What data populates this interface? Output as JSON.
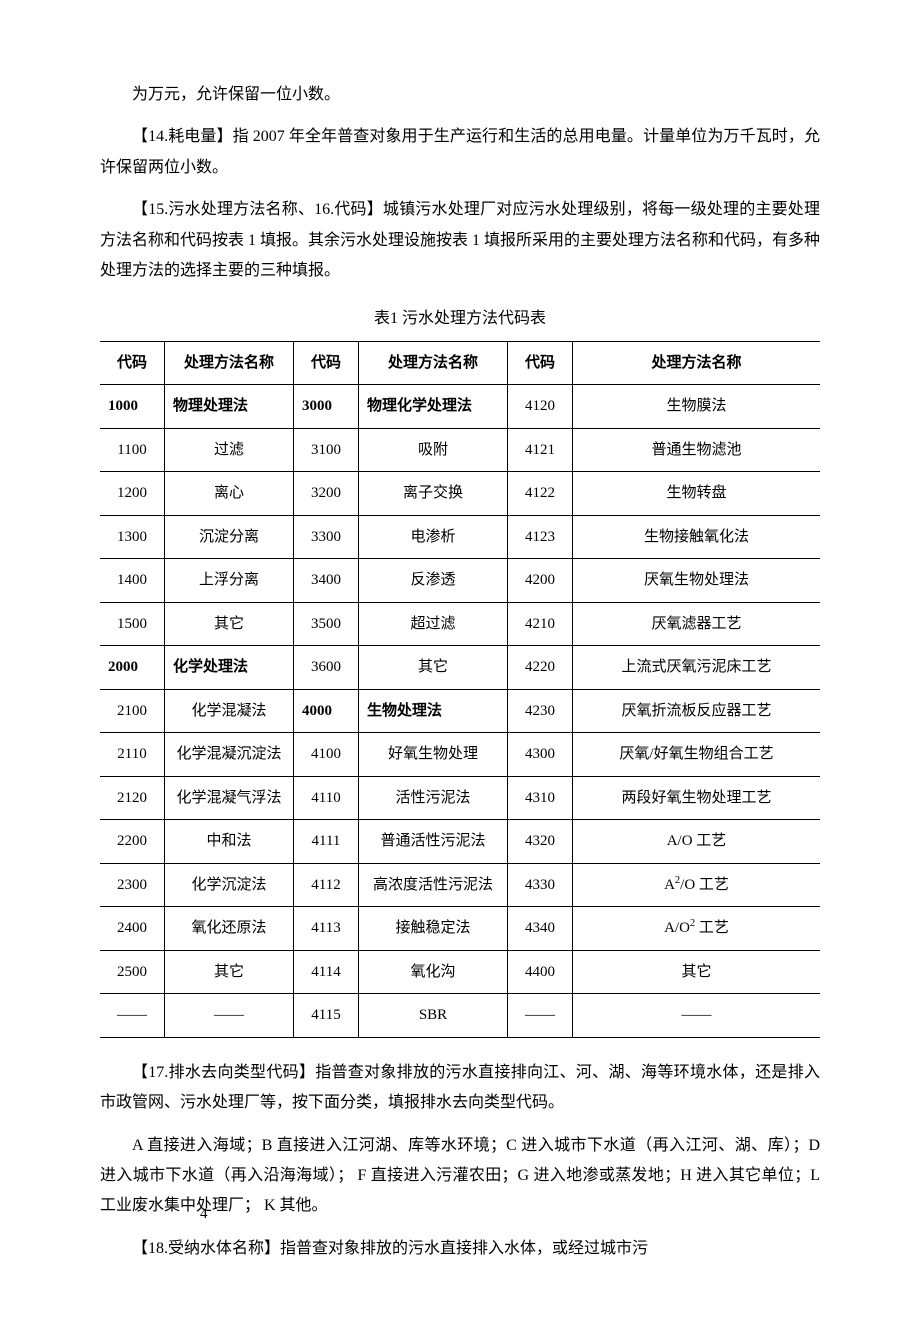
{
  "paragraphs": {
    "p0": "为万元，允许保留一位小数。",
    "p1": "【14.耗电量】指 2007 年全年普查对象用于生产运行和生活的总用电量。计量单位为万千瓦时，允许保留两位小数。",
    "p2": "【15.污水处理方法名称、16.代码】城镇污水处理厂对应污水处理级别，将每一级处理的主要处理方法名称和代码按表 1 填报。其余污水处理设施按表 1 填报所采用的主要处理方法名称和代码，有多种处理方法的选择主要的三种填报。",
    "p3": "【17.排水去向类型代码】指普查对象排放的污水直接排向江、河、湖、海等环境水体，还是排入市政管网、污水处理厂等，按下面分类，填报排水去向类型代码。",
    "p4": "A 直接进入海域；B 直接进入江河湖、库等水环境；C 进入城市下水道（再入江河、湖、库）；D 进入城市下水道（再入沿海海域）；  F 直接进入污灌农田；G 进入地渗或蒸发地；H 进入其它单位；L 工业废水集中处理厂；  K 其他。",
    "p5": "【18.受纳水体名称】指普查对象排放的污水直接排入水体，或经过城市污"
  },
  "table": {
    "title": "表1  污水处理方法代码表",
    "headers": [
      "代码",
      "处理方法名称",
      "代码",
      "处理方法名称",
      "代码",
      "处理方法名称"
    ],
    "rows": [
      {
        "c1": "1000",
        "n1": "物理处理法",
        "b1": true,
        "c2": "3000",
        "n2": "物理化学处理法",
        "b2": true,
        "c3": "4120",
        "n3": "生物膜法"
      },
      {
        "c1": "1100",
        "n1": "过滤",
        "c2": "3100",
        "n2": "吸附",
        "c3": "4121",
        "n3": "普通生物滤池"
      },
      {
        "c1": "1200",
        "n1": "离心",
        "c2": "3200",
        "n2": "离子交换",
        "c3": "4122",
        "n3": "生物转盘"
      },
      {
        "c1": "1300",
        "n1": "沉淀分离",
        "c2": "3300",
        "n2": "电渗析",
        "c3": "4123",
        "n3": "生物接触氧化法"
      },
      {
        "c1": "1400",
        "n1": "上浮分离",
        "c2": "3400",
        "n2": "反渗透",
        "c3": "4200",
        "n3": "厌氧生物处理法"
      },
      {
        "c1": "1500",
        "n1": "其它",
        "c2": "3500",
        "n2": "超过滤",
        "c3": "4210",
        "n3": "厌氧滤器工艺"
      },
      {
        "c1": "2000",
        "n1": "化学处理法",
        "b1": true,
        "c2": "3600",
        "n2": "其它",
        "c3": "4220",
        "n3": "上流式厌氧污泥床工艺"
      },
      {
        "c1": "2100",
        "n1": "化学混凝法",
        "c2": "4000",
        "n2": "生物处理法",
        "b2": true,
        "c3": "4230",
        "n3": "厌氧折流板反应器工艺"
      },
      {
        "c1": "2110",
        "n1": "化学混凝沉淀法",
        "c2": "4100",
        "n2": "好氧生物处理",
        "c3": "4300",
        "n3": "厌氧/好氧生物组合工艺"
      },
      {
        "c1": "2120",
        "n1": "化学混凝气浮法",
        "c2": "4110",
        "n2": "活性污泥法",
        "c3": "4310",
        "n3": "两段好氧生物处理工艺"
      },
      {
        "c1": "2200",
        "n1": "中和法",
        "c2": "4111",
        "n2": "普通活性污泥法",
        "c3": "4320",
        "n3": "A/O 工艺"
      },
      {
        "c1": "2300",
        "n1": "化学沉淀法",
        "c2": "4112",
        "n2": "高浓度活性污泥法",
        "c3": "4330",
        "n3": "A²/O 工艺",
        "html3": "A<sup>2</sup>/O 工艺"
      },
      {
        "c1": "2400",
        "n1": "氧化还原法",
        "c2": "4113",
        "n2": "接触稳定法",
        "c3": "4340",
        "n3": "A/O² 工艺",
        "html3": "A/O<sup>2</sup> 工艺"
      },
      {
        "c1": "2500",
        "n1": "其它",
        "c2": "4114",
        "n2": "氧化沟",
        "c3": "4400",
        "n3": "其它"
      },
      {
        "c1": "——",
        "n1": "——",
        "c2": "4115",
        "n2": "SBR",
        "c3": "——",
        "n3": "——"
      }
    ]
  },
  "page_number": "4"
}
